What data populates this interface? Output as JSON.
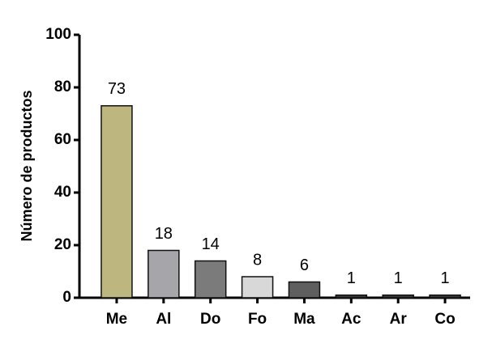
{
  "chart_data": {
    "type": "bar",
    "y_label": "Número de productos",
    "categories": [
      "Me",
      "Al",
      "Do",
      "Fo",
      "Ma",
      "Ac",
      "Ar",
      "Co"
    ],
    "values": [
      73,
      18,
      14,
      8,
      6,
      1,
      1,
      1
    ],
    "colors": [
      "#bdb67f",
      "#a5a5aa",
      "#7b7b7b",
      "#d8d8d8",
      "#5f5f5f",
      "#3a3a3a",
      "#3a3a3a",
      "#3a3a3a"
    ],
    "ylim": [
      0,
      100
    ],
    "yticks": [
      0,
      20,
      40,
      60,
      80,
      100
    ],
    "grid": false
  }
}
